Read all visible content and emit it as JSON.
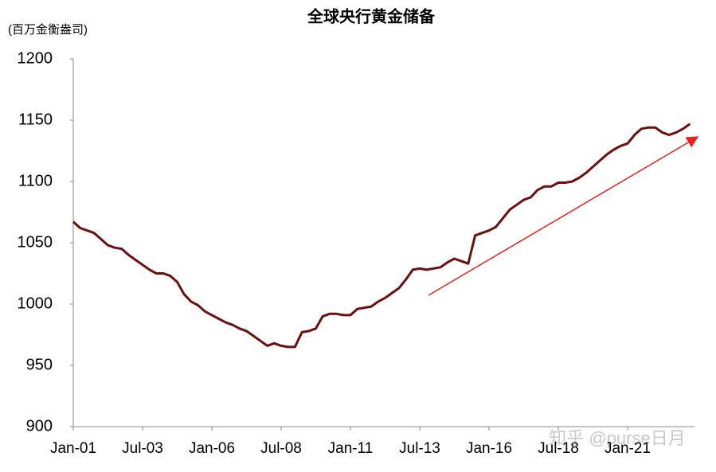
{
  "chart_data": {
    "type": "line",
    "title": "全球央行黄金储备",
    "y_label": "(百万金衡盎司)",
    "watermark": "知乎 @purse日月",
    "categories": [
      "Jan-01",
      null,
      null,
      null,
      null,
      null,
      null,
      null,
      null,
      null,
      "Jul-03",
      null,
      null,
      null,
      null,
      null,
      null,
      null,
      null,
      null,
      "Jan-06",
      null,
      null,
      null,
      null,
      null,
      null,
      null,
      null,
      null,
      "Jul-08",
      null,
      null,
      null,
      null,
      null,
      null,
      null,
      null,
      null,
      "Jan-11",
      null,
      null,
      null,
      null,
      null,
      null,
      null,
      null,
      null,
      "Jul-13",
      null,
      null,
      null,
      null,
      null,
      null,
      null,
      null,
      null,
      "Jan-16",
      null,
      null,
      null,
      null,
      null,
      null,
      null,
      null,
      null,
      "Jul-18",
      null,
      null,
      null,
      null,
      null,
      null,
      null,
      null,
      null,
      "Jan-21",
      null,
      null,
      null,
      null,
      null,
      null,
      null,
      null,
      null
    ],
    "series": [
      {
        "color": "#6b0f0f",
        "values": [
          1067,
          1062,
          1060,
          1058,
          1053,
          1048,
          1046,
          1045,
          1040,
          1036,
          1032,
          1028,
          1025,
          1025,
          1023,
          1018,
          1008,
          1002,
          999,
          994,
          991,
          988,
          985,
          983,
          980,
          978,
          974,
          970,
          966,
          968,
          966,
          965,
          965,
          977,
          978,
          980,
          990,
          992,
          992,
          991,
          991,
          996,
          997,
          998,
          1002,
          1005,
          1009,
          1013,
          1020,
          1028,
          1029,
          1028,
          1029,
          1030,
          1034,
          1037,
          1035,
          1033,
          1056,
          1058,
          1060,
          1063,
          1070,
          1077,
          1081,
          1085,
          1087,
          1093,
          1096,
          1096,
          1099,
          1099,
          1100,
          1103,
          1107,
          1112,
          1117,
          1122,
          1126,
          1129,
          1131,
          1138,
          1143,
          1144,
          1144,
          1140,
          1138,
          1140,
          1143,
          1147
        ]
      }
    ],
    "ylim": [
      900,
      1200
    ],
    "yticks": [
      900,
      950,
      1000,
      1050,
      1100,
      1150,
      1200
    ],
    "grid": false
  }
}
